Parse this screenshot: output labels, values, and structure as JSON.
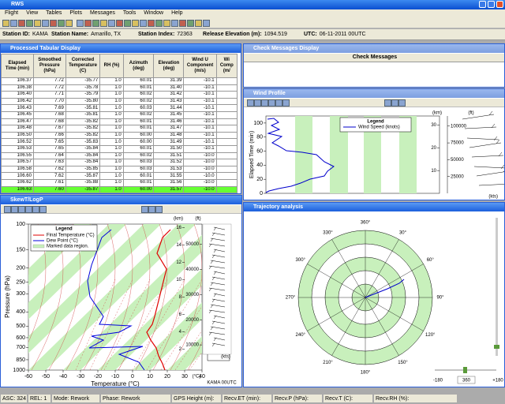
{
  "app": {
    "title": "RWS",
    "menu": [
      "Flight",
      "View",
      "Tables",
      "Plots",
      "Messages",
      "Tools",
      "Window",
      "Help"
    ]
  },
  "station": [
    {
      "label": "Station ID:",
      "value": "KAMA"
    },
    {
      "label": "Station Name:",
      "value": "Amarillo, TX"
    },
    {
      "label": "Station Index:",
      "value": "72363"
    },
    {
      "label": "Release Elevation (m):",
      "value": "1094.519"
    },
    {
      "label": "UTC:",
      "value": "06-11-2011 00UTC"
    }
  ],
  "tabular": {
    "title": "Processed Tabular Display",
    "columns": [
      "Elapsed Time (min)",
      "Smoothed Pressure (hPa)",
      "Corrected Temperature (C)",
      "RH (%)",
      "Azimuth (deg)",
      "Elevation (deg)",
      "Wind U Component (m/s)",
      "Wi Comp (m/"
    ],
    "rows": [
      [
        "106.37",
        "7.72",
        "-35.77",
        "1.0",
        "60.01",
        "31.39",
        "-10.1"
      ],
      [
        "106.38",
        "7.72",
        "-35.78",
        "1.0",
        "60.01",
        "31.40",
        "-10.1"
      ],
      [
        "106.40",
        "7.71",
        "-35.79",
        "1.0",
        "60.02",
        "31.42",
        "-10.1"
      ],
      [
        "106.42",
        "7.70",
        "-35.80",
        "1.0",
        "60.02",
        "31.43",
        "-10.1"
      ],
      [
        "106.43",
        "7.69",
        "-35.81",
        "1.0",
        "60.03",
        "31.44",
        "-10.1"
      ],
      [
        "106.45",
        "7.68",
        "-35.81",
        "1.0",
        "60.02",
        "31.45",
        "-10.1"
      ],
      [
        "106.47",
        "7.68",
        "-35.82",
        "1.0",
        "60.01",
        "31.46",
        "-10.1"
      ],
      [
        "106.48",
        "7.67",
        "-35.82",
        "1.0",
        "60.01",
        "31.47",
        "-10.1"
      ],
      [
        "106.50",
        "7.66",
        "-35.82",
        "1.0",
        "60.00",
        "31.48",
        "-10.1"
      ],
      [
        "106.52",
        "7.65",
        "-35.83",
        "1.0",
        "60.00",
        "31.49",
        "-10.1"
      ],
      [
        "106.53",
        "7.65",
        "-35.84",
        "1.0",
        "60.01",
        "31.50",
        "-10.1"
      ],
      [
        "106.55",
        "7.64",
        "-35.84",
        "1.0",
        "60.02",
        "31.51",
        "-10.0"
      ],
      [
        "106.57",
        "7.63",
        "-35.84",
        "1.0",
        "60.03",
        "31.52",
        "-10.0"
      ],
      [
        "106.58",
        "7.62",
        "-35.85",
        "1.0",
        "60.03",
        "31.53",
        "-10.0"
      ],
      [
        "106.60",
        "7.62",
        "-35.87",
        "1.0",
        "60.01",
        "31.55",
        "-10.0"
      ],
      [
        "106.62",
        "7.61",
        "-35.88",
        "1.0",
        "60.01",
        "31.56",
        "-10.0"
      ],
      [
        "106.63",
        "7.60",
        "-35.87",
        "1.0",
        "60.00",
        "31.57",
        "-10.0"
      ]
    ]
  },
  "messages": {
    "title": "Check Messages Display",
    "column": "Check Messages"
  },
  "wind": {
    "title": "Wind Profile",
    "legend_title": "Legend",
    "legend": "Wind Speed (knots)",
    "y_label": "Elapsed Time (min)",
    "ylim": [
      0,
      110
    ],
    "yticks": [
      0,
      20,
      40,
      60,
      80,
      100
    ],
    "km_label": "(km)",
    "kmlim": [
      0,
      34
    ],
    "km_ticks": [
      10,
      20,
      30
    ],
    "ft_label": "(ft)",
    "ftlim": [
      0,
      115000
    ],
    "ft_ticks": [
      25000,
      50000,
      75000,
      100000
    ],
    "barb_label": "(kts)"
  },
  "skewt": {
    "title": "SkewT/LogP",
    "legend_title": "Legend",
    "legend": [
      "Final Temperature (°C)",
      "Dew Point (°C)",
      "Marked data region."
    ],
    "y_label": "Pressure (hPa)",
    "log": true,
    "ylim": [
      1000,
      100
    ],
    "yticks": [
      100,
      150,
      200,
      250,
      300,
      400,
      500,
      600,
      700,
      850,
      1000
    ],
    "x_label": "Temperature (°C)",
    "xlim": [
      -60,
      40
    ],
    "xticks": [
      -60,
      -50,
      -40,
      -30,
      -20,
      -10,
      0,
      10,
      20,
      30,
      40
    ],
    "km_label": "(km)",
    "kmlim": [
      -0.4,
      16.4
    ],
    "km_ticks": [
      2,
      4,
      6,
      8,
      10,
      12,
      14,
      16
    ],
    "ft_label": "(ft)",
    "ftlim": [
      0,
      58000
    ],
    "ft_ticks": [
      10000,
      20000,
      30000,
      40000,
      50000
    ],
    "unit_label": "(°C)",
    "barb_label": "(kts)",
    "station_label": "KAMA  00UTC"
  },
  "trajectory": {
    "title": "Trajectory analysis",
    "angles": [
      "360°",
      "30°",
      "60°",
      "90°",
      "120°",
      "150°",
      "180°",
      "210°",
      "240°",
      "270°",
      "300°",
      "330°"
    ],
    "slider": [
      "-180",
      "360",
      "+180"
    ]
  },
  "status": [
    "ASC: 324",
    "REL: 1",
    "Mode: Rework",
    "Phase: Rework",
    "GPS Height (m):",
    "Recv.ET (min):",
    "Recv.P (hPa):",
    "Recv.T (C):",
    "Recv.RH (%):"
  ]
}
